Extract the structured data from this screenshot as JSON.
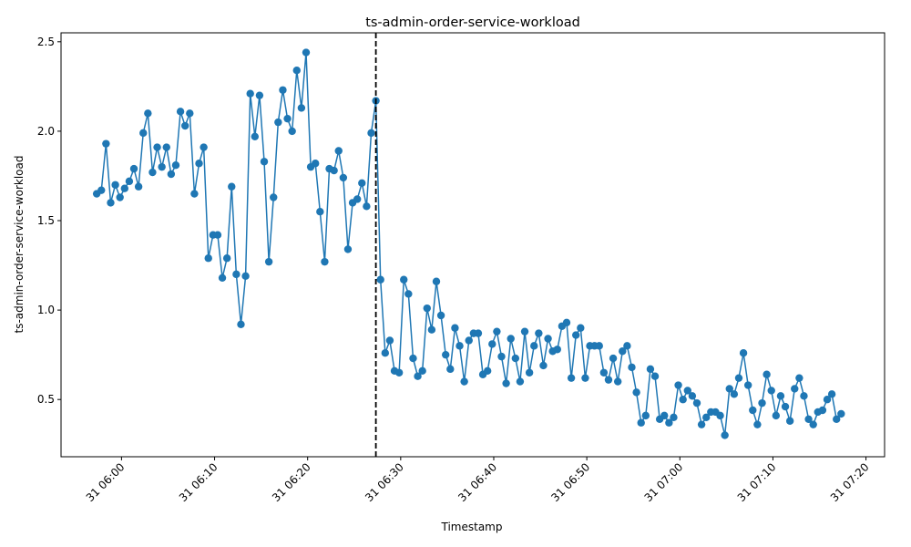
{
  "chart_data": {
    "type": "line",
    "title": "ts-admin-order-service-workload",
    "xlabel": "Timestamp",
    "ylabel": "ts-admin-order-service-workload",
    "color": "#1f77b4",
    "marker": "circle",
    "grid": false,
    "legend": false,
    "xlim": [
      "31 05:53:30",
      "31 07:22:00"
    ],
    "ylim": [
      0.18,
      2.55
    ],
    "x_ticks": [
      "31 06:00",
      "31 06:10",
      "31 06:20",
      "31 06:30",
      "31 06:40",
      "31 06:50",
      "31 07:00",
      "31 07:10",
      "31 07:20"
    ],
    "y_ticks": [
      "0.5",
      "1.0",
      "1.5",
      "2.0",
      "2.5"
    ],
    "vline": {
      "x": "31 06:27:20",
      "style": "dashed",
      "color": "#000000"
    },
    "series": [
      {
        "x": [
          "31 05:57:20",
          "31 05:57:50",
          "31 05:58:20",
          "31 05:58:50",
          "31 05:59:20",
          "31 05:59:50",
          "31 06:00:20",
          "31 06:00:50",
          "31 06:01:20",
          "31 06:01:50",
          "31 06:02:20",
          "31 06:02:50",
          "31 06:03:20",
          "31 06:03:50",
          "31 06:04:20",
          "31 06:04:50",
          "31 06:05:20",
          "31 06:05:50",
          "31 06:06:20",
          "31 06:06:50",
          "31 06:07:20",
          "31 06:07:50",
          "31 06:08:20",
          "31 06:08:50",
          "31 06:09:20",
          "31 06:09:50",
          "31 06:10:20",
          "31 06:10:50",
          "31 06:11:20",
          "31 06:11:50",
          "31 06:12:20",
          "31 06:12:50",
          "31 06:13:20",
          "31 06:13:50",
          "31 06:14:20",
          "31 06:14:50",
          "31 06:15:20",
          "31 06:15:50",
          "31 06:16:20",
          "31 06:16:50",
          "31 06:17:20",
          "31 06:17:50",
          "31 06:18:20",
          "31 06:18:50",
          "31 06:19:20",
          "31 06:19:50",
          "31 06:20:20",
          "31 06:20:50",
          "31 06:21:20",
          "31 06:21:50",
          "31 06:22:20",
          "31 06:22:50",
          "31 06:23:20",
          "31 06:23:50",
          "31 06:24:20",
          "31 06:24:50",
          "31 06:25:20",
          "31 06:25:50",
          "31 06:26:20",
          "31 06:26:50",
          "31 06:27:20",
          "31 06:27:50",
          "31 06:28:20",
          "31 06:28:50",
          "31 06:29:20",
          "31 06:29:50",
          "31 06:30:20",
          "31 06:30:50",
          "31 06:31:20",
          "31 06:31:50",
          "31 06:32:20",
          "31 06:32:50",
          "31 06:33:20",
          "31 06:33:50",
          "31 06:34:20",
          "31 06:34:50",
          "31 06:35:20",
          "31 06:35:50",
          "31 06:36:20",
          "31 06:36:50",
          "31 06:37:20",
          "31 06:37:50",
          "31 06:38:20",
          "31 06:38:50",
          "31 06:39:20",
          "31 06:39:50",
          "31 06:40:20",
          "31 06:40:50",
          "31 06:41:20",
          "31 06:41:50",
          "31 06:42:20",
          "31 06:42:50",
          "31 06:43:20",
          "31 06:43:50",
          "31 06:44:20",
          "31 06:44:50",
          "31 06:45:20",
          "31 06:45:50",
          "31 06:46:20",
          "31 06:46:50",
          "31 06:47:20",
          "31 06:47:50",
          "31 06:48:20",
          "31 06:48:50",
          "31 06:49:20",
          "31 06:49:50",
          "31 06:50:20",
          "31 06:50:50",
          "31 06:51:20",
          "31 06:51:50",
          "31 06:52:20",
          "31 06:52:50",
          "31 06:53:20",
          "31 06:53:50",
          "31 06:54:20",
          "31 06:54:50",
          "31 06:55:20",
          "31 06:55:50",
          "31 06:56:20",
          "31 06:56:50",
          "31 06:57:20",
          "31 06:57:50",
          "31 06:58:20",
          "31 06:58:50",
          "31 06:59:20",
          "31 06:59:50",
          "31 07:00:20",
          "31 07:00:50",
          "31 07:01:20",
          "31 07:01:50",
          "31 07:02:20",
          "31 07:02:50",
          "31 07:03:20",
          "31 07:03:50",
          "31 07:04:20",
          "31 07:04:50",
          "31 07:05:20",
          "31 07:05:50",
          "31 07:06:20",
          "31 07:06:50",
          "31 07:07:20",
          "31 07:07:50",
          "31 07:08:20",
          "31 07:08:50",
          "31 07:09:20",
          "31 07:09:50",
          "31 07:10:20",
          "31 07:10:50",
          "31 07:11:20",
          "31 07:11:50",
          "31 07:12:20",
          "31 07:12:50",
          "31 07:13:20",
          "31 07:13:50",
          "31 07:14:20",
          "31 07:14:50",
          "31 07:15:20",
          "31 07:15:50",
          "31 07:16:20",
          "31 07:16:50",
          "31 07:17:20"
        ],
        "values": [
          1.65,
          1.67,
          1.93,
          1.6,
          1.7,
          1.63,
          1.68,
          1.72,
          1.79,
          1.69,
          1.99,
          2.1,
          1.77,
          1.91,
          1.8,
          1.91,
          1.76,
          1.81,
          2.11,
          2.03,
          2.1,
          1.65,
          1.82,
          1.91,
          1.29,
          1.42,
          1.42,
          1.18,
          1.29,
          1.69,
          1.2,
          0.92,
          1.19,
          2.21,
          1.97,
          2.2,
          1.83,
          1.27,
          1.63,
          2.05,
          2.23,
          2.07,
          2.0,
          2.34,
          2.13,
          2.44,
          1.8,
          1.82,
          1.55,
          1.27,
          1.79,
          1.78,
          1.89,
          1.74,
          1.34,
          1.6,
          1.62,
          1.71,
          1.58,
          1.99,
          2.17,
          1.17,
          0.76,
          0.83,
          0.66,
          0.65,
          1.17,
          1.09,
          0.73,
          0.63,
          0.66,
          1.01,
          0.89,
          1.16,
          0.97,
          0.75,
          0.67,
          0.9,
          0.8,
          0.6,
          0.83,
          0.87,
          0.87,
          0.64,
          0.66,
          0.81,
          0.88,
          0.74,
          0.59,
          0.84,
          0.73,
          0.6,
          0.88,
          0.65,
          0.8,
          0.87,
          0.69,
          0.84,
          0.77,
          0.78,
          0.91,
          0.93,
          0.62,
          0.86,
          0.9,
          0.62,
          0.8,
          0.8,
          0.8,
          0.65,
          0.61,
          0.73,
          0.6,
          0.77,
          0.8,
          0.68,
          0.54,
          0.37,
          0.41,
          0.67,
          0.63,
          0.39,
          0.41,
          0.37,
          0.4,
          0.58,
          0.5,
          0.55,
          0.52,
          0.48,
          0.36,
          0.4,
          0.43,
          0.43,
          0.41,
          0.3,
          0.56,
          0.53,
          0.62,
          0.76,
          0.58,
          0.44,
          0.36,
          0.48,
          0.64,
          0.55,
          0.41,
          0.52,
          0.46,
          0.38,
          0.56,
          0.62,
          0.52,
          0.39,
          0.36,
          0.43,
          0.44,
          0.5,
          0.53,
          0.39,
          0.42
        ]
      }
    ]
  }
}
